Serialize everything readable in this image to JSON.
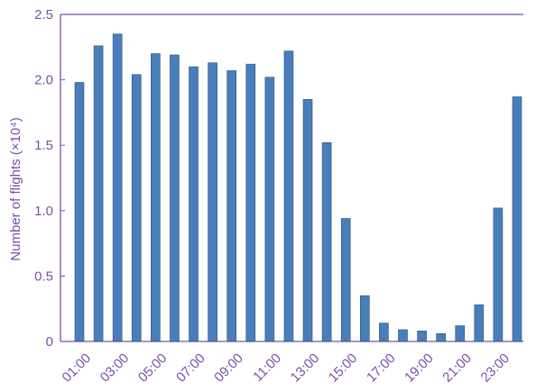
{
  "chart_data": {
    "type": "bar",
    "title": "",
    "xlabel": "",
    "ylabel": "Number of flights (×10⁴)",
    "categories": [
      "01:00",
      "02:00",
      "03:00",
      "04:00",
      "05:00",
      "06:00",
      "07:00",
      "08:00",
      "09:00",
      "10:00",
      "11:00",
      "12:00",
      "13:00",
      "14:00",
      "15:00",
      "16:00",
      "17:00",
      "18:00",
      "19:00",
      "20:00",
      "21:00",
      "22:00",
      "23:00",
      "24:00"
    ],
    "x_tick_labels": [
      "01:00",
      "",
      "03:00",
      "",
      "05:00",
      "",
      "07:00",
      "",
      "09:00",
      "",
      "11:00",
      "",
      "13:00",
      "",
      "15:00",
      "",
      "17:00",
      "",
      "19:00",
      "",
      "21:00",
      "",
      "23:00",
      ""
    ],
    "values": [
      1.98,
      2.26,
      2.35,
      2.04,
      2.2,
      2.19,
      2.1,
      2.13,
      2.07,
      2.12,
      2.02,
      2.22,
      1.85,
      1.52,
      0.94,
      0.35,
      0.14,
      0.09,
      0.08,
      0.06,
      0.12,
      0.28,
      1.02,
      1.87
    ],
    "ylim": [
      0,
      2.5
    ],
    "y_ticks": [
      0,
      0.5,
      1.0,
      1.5,
      2.0,
      2.5
    ],
    "y_tick_labels": [
      "0",
      "0.5",
      "1.0",
      "1.5",
      "2.0",
      "2.5"
    ],
    "grid": false,
    "colors": {
      "bar": "#4a7ebb",
      "bar_edge": "#2c4f7c",
      "axis": "#7a4fa8",
      "text": "#7a4fa8"
    }
  }
}
